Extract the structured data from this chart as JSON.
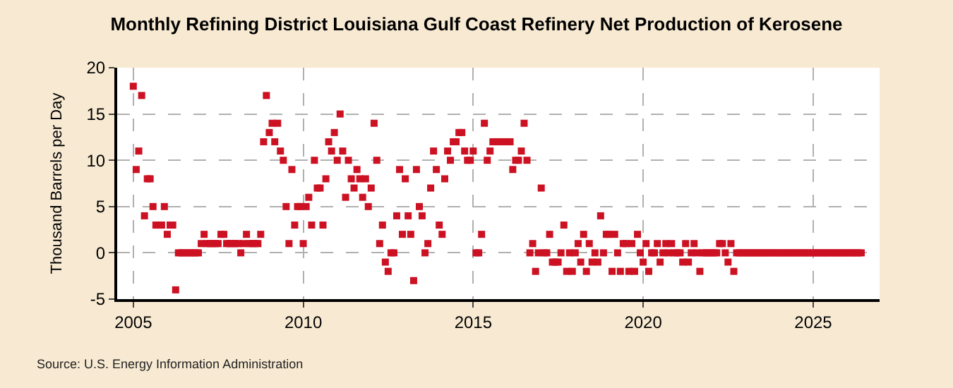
{
  "chart_data": {
    "type": "scatter",
    "title": "Monthly Refining District Louisiana Gulf Coast Refinery Net Production of Kerosene",
    "ylabel": "Thousand Barrels per Day",
    "annotations": [
      "Source: U.S. Energy Information Administration"
    ],
    "xlim": [
      "2004-07-12",
      "2026-12-15"
    ],
    "xticks": [
      "2005",
      "2010",
      "2015",
      "2020",
      "2025"
    ],
    "ylim": [
      -5,
      20
    ],
    "yticks": [
      -5,
      0,
      5,
      10,
      15,
      20
    ],
    "grid": true,
    "legend": false,
    "marker": "square",
    "color": "#cc1122",
    "x": [
      "2005-01",
      "2005-02",
      "2005-03",
      "2005-04",
      "2005-05",
      "2005-06",
      "2005-07",
      "2005-08",
      "2005-09",
      "2005-10",
      "2005-11",
      "2005-12",
      "2006-01",
      "2006-02",
      "2006-03",
      "2006-04",
      "2006-05",
      "2006-06",
      "2006-07",
      "2006-08",
      "2006-09",
      "2006-10",
      "2006-11",
      "2006-12",
      "2007-01",
      "2007-02",
      "2007-03",
      "2007-04",
      "2007-05",
      "2007-06",
      "2007-07",
      "2007-08",
      "2007-09",
      "2007-10",
      "2007-11",
      "2007-12",
      "2008-01",
      "2008-02",
      "2008-03",
      "2008-04",
      "2008-05",
      "2008-06",
      "2008-07",
      "2008-08",
      "2008-09",
      "2008-10",
      "2008-11",
      "2008-12",
      "2009-01",
      "2009-02",
      "2009-03",
      "2009-04",
      "2009-05",
      "2009-06",
      "2009-07",
      "2009-08",
      "2009-09",
      "2009-10",
      "2009-11",
      "2009-12",
      "2010-01",
      "2010-02",
      "2010-03",
      "2010-04",
      "2010-05",
      "2010-06",
      "2010-07",
      "2010-08",
      "2010-09",
      "2010-10",
      "2010-11",
      "2010-12",
      "2011-01",
      "2011-02",
      "2011-03",
      "2011-04",
      "2011-05",
      "2011-06",
      "2011-07",
      "2011-08",
      "2011-09",
      "2011-10",
      "2011-11",
      "2011-12",
      "2012-01",
      "2012-02",
      "2012-03",
      "2012-04",
      "2012-05",
      "2012-06",
      "2012-07",
      "2012-08",
      "2012-09",
      "2012-10",
      "2012-11",
      "2012-12",
      "2013-01",
      "2013-02",
      "2013-03",
      "2013-04",
      "2013-05",
      "2013-06",
      "2013-07",
      "2013-08",
      "2013-09",
      "2013-10",
      "2013-11",
      "2013-12",
      "2014-01",
      "2014-02",
      "2014-03",
      "2014-04",
      "2014-05",
      "2014-06",
      "2014-07",
      "2014-08",
      "2014-09",
      "2014-10",
      "2014-11",
      "2014-12",
      "2015-01",
      "2015-02",
      "2015-03",
      "2015-04",
      "2015-05",
      "2015-06",
      "2015-07",
      "2015-08",
      "2015-09",
      "2015-10",
      "2015-11",
      "2015-12",
      "2016-01",
      "2016-02",
      "2016-03",
      "2016-04",
      "2016-05",
      "2016-06",
      "2016-07",
      "2016-08",
      "2016-09",
      "2016-10",
      "2016-11",
      "2016-12",
      "2017-01",
      "2017-02",
      "2017-03",
      "2017-04",
      "2017-05",
      "2017-06",
      "2017-07",
      "2017-08",
      "2017-09",
      "2017-10",
      "2017-11",
      "2017-12",
      "2018-01",
      "2018-02",
      "2018-03",
      "2018-04",
      "2018-05",
      "2018-06",
      "2018-07",
      "2018-08",
      "2018-09",
      "2018-10",
      "2018-11",
      "2018-12",
      "2019-01",
      "2019-02",
      "2019-03",
      "2019-04",
      "2019-05",
      "2019-06",
      "2019-07",
      "2019-08",
      "2019-09",
      "2019-10",
      "2019-11",
      "2019-12",
      "2020-01",
      "2020-02",
      "2020-03",
      "2020-04",
      "2020-05",
      "2020-06",
      "2020-07",
      "2020-08",
      "2020-09",
      "2020-10",
      "2020-11",
      "2020-12",
      "2021-01",
      "2021-02",
      "2021-03",
      "2021-04",
      "2021-05",
      "2021-06",
      "2021-07",
      "2021-08",
      "2021-09",
      "2021-10",
      "2021-11",
      "2021-12",
      "2022-01",
      "2022-02",
      "2022-03",
      "2022-04",
      "2022-05",
      "2022-06",
      "2022-07",
      "2022-08",
      "2022-09",
      "2022-10",
      "2022-11",
      "2022-12",
      "2023-01",
      "2023-02",
      "2023-03",
      "2023-04",
      "2023-05",
      "2023-06",
      "2023-07",
      "2023-08",
      "2023-09",
      "2023-10",
      "2023-11",
      "2023-12",
      "2024-01",
      "2024-02",
      "2024-03",
      "2024-04",
      "2024-05",
      "2024-06",
      "2024-07",
      "2024-08",
      "2024-09",
      "2024-10",
      "2024-11",
      "2024-12",
      "2025-01",
      "2025-02",
      "2025-03",
      "2025-04",
      "2025-05",
      "2025-06",
      "2025-07",
      "2025-08",
      "2025-09",
      "2025-10",
      "2025-11",
      "2025-12",
      "2026-01",
      "2026-02",
      "2026-03",
      "2026-04",
      "2026-05",
      "2026-06"
    ],
    "values": [
      18,
      9,
      11,
      17,
      4,
      8,
      8,
      5,
      3,
      3,
      3,
      5,
      2,
      3,
      3,
      -4,
      0,
      0,
      0,
      0,
      0,
      0,
      0,
      0,
      1,
      2,
      1,
      1,
      1,
      1,
      1,
      2,
      2,
      1,
      1,
      1,
      1,
      1,
      0,
      1,
      2,
      1,
      1,
      1,
      1,
      2,
      12,
      17,
      13,
      14,
      12,
      14,
      11,
      10,
      5,
      1,
      9,
      3,
      5,
      5,
      1,
      5,
      6,
      3,
      10,
      7,
      7,
      3,
      8,
      12,
      11,
      13,
      10,
      15,
      11,
      6,
      10,
      8,
      7,
      9,
      8,
      6,
      8,
      5,
      7,
      14,
      10,
      1,
      3,
      -1,
      -2,
      0,
      0,
      4,
      9,
      2,
      8,
      4,
      2,
      -3,
      9,
      5,
      4,
      0,
      1,
      7,
      11,
      9,
      3,
      2,
      8,
      11,
      10,
      12,
      12,
      13,
      13,
      11,
      10,
      10,
      11,
      0,
      0,
      2,
      14,
      10,
      11,
      12,
      12,
      12,
      12,
      12,
      12,
      12,
      9,
      10,
      10,
      11,
      14,
      10,
      0,
      1,
      -2,
      0,
      7,
      0,
      0,
      2,
      -1,
      -1,
      -1,
      0,
      3,
      -2,
      0,
      -2,
      0,
      1,
      -1,
      2,
      -2,
      1,
      -1,
      0,
      -1,
      4,
      0,
      2,
      2,
      -2,
      2,
      0,
      -2,
      1,
      1,
      -2,
      1,
      -2,
      2,
      0,
      -1,
      1,
      -2,
      0,
      0,
      1,
      -1,
      0,
      1,
      0,
      1,
      0,
      0,
      0,
      -1,
      1,
      -1,
      0,
      1,
      0,
      -2,
      0,
      0,
      0,
      0,
      0,
      0,
      1,
      1,
      0,
      -1,
      1,
      -2,
      0,
      0,
      0,
      0,
      0,
      0,
      0,
      0,
      0,
      0,
      0,
      0,
      0,
      0,
      0,
      0,
      0,
      0,
      0,
      0,
      0,
      0,
      0,
      0,
      0,
      0,
      0,
      0,
      0,
      0,
      0,
      0,
      0,
      0,
      0,
      0,
      0,
      0,
      0,
      0,
      0,
      0,
      0,
      0,
      0
    ]
  }
}
